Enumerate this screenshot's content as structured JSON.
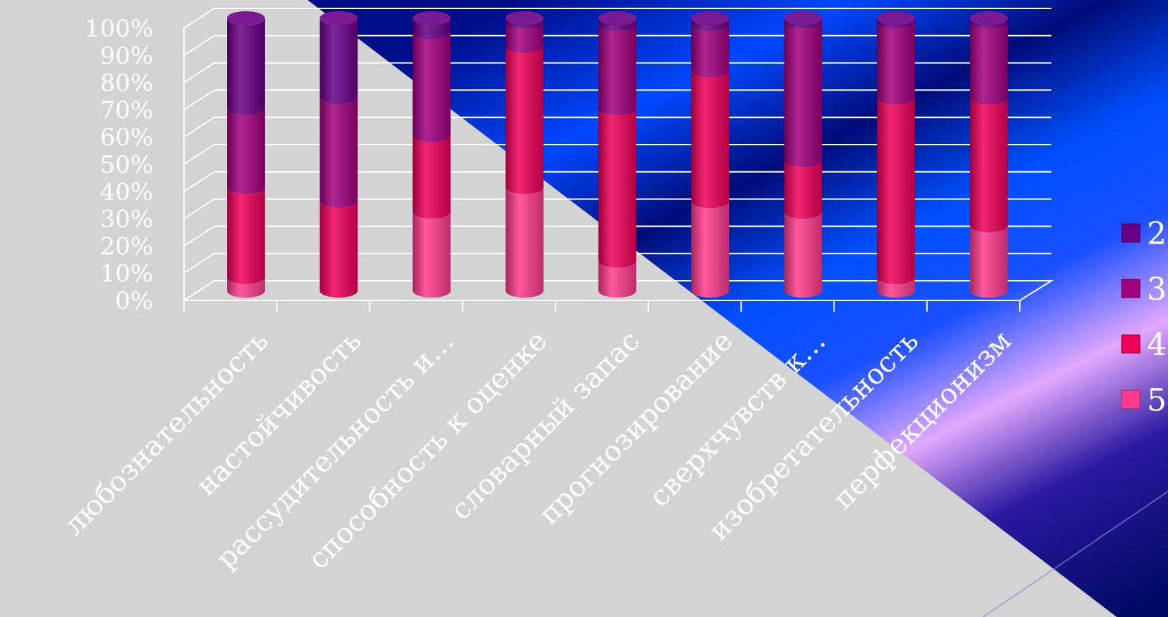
{
  "chart_data": {
    "type": "bar",
    "stacked": true,
    "percent_stacked": true,
    "three_d": true,
    "shape": "cylinder",
    "title": "",
    "xlabel": "",
    "ylabel": "",
    "ylim": [
      0,
      100
    ],
    "y_ticks": [
      "0%",
      "10%",
      "20%",
      "30%",
      "40%",
      "50%",
      "60%",
      "70%",
      "80%",
      "90%",
      "100%"
    ],
    "grid": true,
    "legend_position": "right",
    "categories": [
      "любознательность",
      "настойчивость",
      "рассудительность и…",
      "способность к оценке",
      "словарный запас",
      "прогнозирование",
      "сверхчувств к…",
      "изобретательность",
      "перфекционизм"
    ],
    "series": [
      {
        "name": "5",
        "color": "#ff3b8e",
        "values": [
          5,
          0,
          29,
          38,
          11,
          33,
          29,
          5,
          24
        ]
      },
      {
        "name": "4",
        "color": "#f0005a",
        "values": [
          33,
          33,
          28,
          52,
          56,
          48,
          19,
          66,
          47
        ]
      },
      {
        "name": "3",
        "color": "#a3007f",
        "values": [
          29,
          38,
          38,
          9,
          31,
          17,
          51,
          28,
          28
        ]
      },
      {
        "name": "2",
        "color": "#6a0086",
        "values": [
          33,
          29,
          5,
          1,
          2,
          2,
          1,
          1,
          1
        ]
      }
    ],
    "legend_order": [
      "2",
      "3",
      "4",
      "5"
    ]
  },
  "colors": {
    "background_gray": "#d3d3d3",
    "background_blue": "#0044ff",
    "background_navy": "#000a6e",
    "background_pink": "#e6aaff",
    "gridline": "#ffffff",
    "text": "#ffffff"
  }
}
